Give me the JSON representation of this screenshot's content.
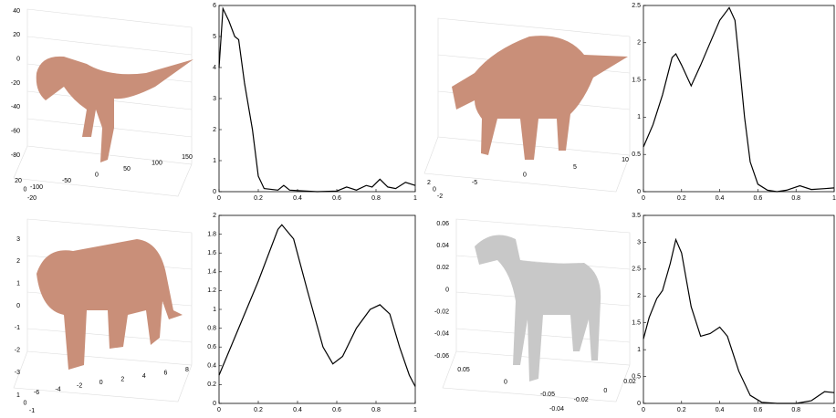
{
  "chart_data": [
    {
      "type": "line",
      "color": "#000000",
      "x": [
        0,
        0.02,
        0.05,
        0.08,
        0.1,
        0.13,
        0.17,
        0.2,
        0.23,
        0.3,
        0.33,
        0.36,
        0.5,
        0.6,
        0.65,
        0.7,
        0.75,
        0.78,
        0.82,
        0.86,
        0.9,
        0.95,
        1
      ],
      "values": [
        4,
        5.9,
        5.5,
        5,
        4.9,
        3.5,
        2,
        0.5,
        0.1,
        0.05,
        0.2,
        0.05,
        0,
        0.02,
        0.15,
        0.05,
        0.2,
        0.15,
        0.4,
        0.15,
        0.1,
        0.3,
        0.2
      ],
      "xlim": [
        0,
        1
      ],
      "xticks": [
        0,
        0.2,
        0.4,
        0.6,
        0.8,
        1
      ],
      "ylim": [
        0,
        6
      ],
      "yticks": [
        0,
        1,
        2,
        3,
        4,
        5,
        6
      ]
    },
    {
      "type": "line",
      "color": "#000000",
      "x": [
        0,
        0.05,
        0.1,
        0.15,
        0.17,
        0.2,
        0.25,
        0.3,
        0.35,
        0.4,
        0.45,
        0.48,
        0.5,
        0.53,
        0.56,
        0.6,
        0.65,
        0.7,
        0.75,
        0.82,
        0.88,
        0.95,
        1
      ],
      "values": [
        0.6,
        0.9,
        1.3,
        1.8,
        1.85,
        1.7,
        1.42,
        1.7,
        2.0,
        2.3,
        2.47,
        2.3,
        1.8,
        1.0,
        0.4,
        0.1,
        0.02,
        0,
        0.02,
        0.08,
        0.03,
        0.04,
        0.05
      ],
      "xlim": [
        0,
        1
      ],
      "xticks": [
        0,
        0.2,
        0.4,
        0.6,
        0.8,
        1
      ],
      "ylim": [
        0,
        2.5
      ],
      "yticks": [
        0,
        0.5,
        1,
        1.5,
        2,
        2.5
      ]
    },
    {
      "type": "line",
      "color": "#000000",
      "x": [
        0,
        0.1,
        0.2,
        0.3,
        0.32,
        0.38,
        0.45,
        0.53,
        0.58,
        0.63,
        0.7,
        0.77,
        0.82,
        0.87,
        0.92,
        0.97,
        1
      ],
      "values": [
        0.3,
        0.8,
        1.3,
        1.85,
        1.9,
        1.75,
        1.2,
        0.6,
        0.42,
        0.5,
        0.8,
        1.0,
        1.05,
        0.95,
        0.6,
        0.3,
        0.18
      ],
      "xlim": [
        0,
        1
      ],
      "xticks": [
        0,
        0.2,
        0.4,
        0.6,
        0.8,
        1
      ],
      "ylim": [
        0,
        2
      ],
      "yticks": [
        0,
        0.2,
        0.4,
        0.6,
        0.8,
        1,
        1.2,
        1.4,
        1.6,
        1.8,
        2
      ]
    },
    {
      "type": "line",
      "color": "#000000",
      "x": [
        0,
        0.03,
        0.07,
        0.1,
        0.14,
        0.17,
        0.2,
        0.25,
        0.3,
        0.35,
        0.4,
        0.44,
        0.5,
        0.56,
        0.62,
        0.7,
        0.8,
        0.88,
        0.95,
        1
      ],
      "values": [
        1.2,
        1.6,
        1.95,
        2.1,
        2.6,
        3.05,
        2.8,
        1.8,
        1.25,
        1.3,
        1.42,
        1.25,
        0.6,
        0.15,
        0.02,
        0,
        0,
        0.05,
        0.22,
        0.2
      ],
      "xlim": [
        0,
        1
      ],
      "xticks": [
        0,
        0.2,
        0.4,
        0.6,
        0.8,
        1
      ],
      "ylim": [
        0,
        3.5
      ],
      "yticks": [
        0,
        0.5,
        1,
        1.5,
        2,
        2.5,
        3,
        3.5
      ]
    }
  ],
  "renders": [
    {
      "z_ticks": [
        "40",
        "20",
        "0",
        "-20",
        "-40",
        "-60",
        "-80"
      ],
      "x_ticks": [
        "-100",
        "-50",
        "0",
        "50",
        "100",
        "150"
      ],
      "y_ticks": [
        "20",
        "0",
        "-20"
      ]
    },
    {
      "x_ticks": [
        "-5",
        "0",
        "5",
        "10"
      ],
      "y_ticks": [
        "2",
        "0",
        "-2"
      ]
    },
    {
      "z_ticks": [
        "3",
        "2",
        "1",
        "0",
        "-1",
        "-2",
        "-3"
      ],
      "x_ticks": [
        "-6",
        "-4",
        "-2",
        "0",
        "2",
        "4",
        "6",
        "8"
      ],
      "y_ticks": [
        "1",
        "0",
        "-1"
      ]
    },
    {
      "z_ticks": [
        "0.06",
        "0.04",
        "0.02",
        "0",
        "-0.02",
        "-0.04",
        "-0.06"
      ],
      "x_ticks": [
        "0.05",
        "0",
        "-0.05"
      ],
      "y_ticks": [
        "-0.04",
        "-0.02",
        "0",
        "0.02"
      ]
    }
  ]
}
